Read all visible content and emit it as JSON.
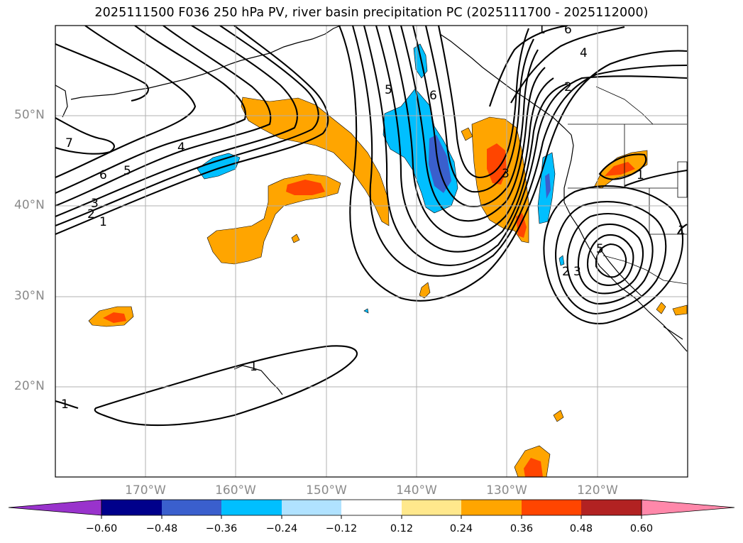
{
  "title": "2025111500 F036 250 hPa PV, river basin precipitation PC (2025111700 - 2025112000)",
  "axes": {
    "lat_labels": [
      "50°N",
      "40°N",
      "30°N",
      "20°N"
    ],
    "lon_labels": [
      "170°W",
      "160°W",
      "150°W",
      "140°W",
      "130°W",
      "120°W"
    ]
  },
  "contours": {
    "labels": [
      "7",
      "6",
      "5",
      "4",
      "3",
      "2",
      "1",
      "5",
      "6",
      "3",
      "6",
      "4",
      "2",
      "1",
      "1",
      "2",
      "3",
      "5",
      "1",
      "1",
      "1"
    ]
  },
  "colorbar": {
    "ticks": [
      "−0.60",
      "−0.48",
      "−0.36",
      "−0.24",
      "−0.12",
      "0.12",
      "0.24",
      "0.36",
      "0.48",
      "0.60"
    ],
    "colors": [
      "#9933cc",
      "#00008b",
      "#3a5fcd",
      "#00bfff",
      "#b0e2ff",
      "#ffffff",
      "#ffe88c",
      "#ffa500",
      "#ff4500",
      "#b22222",
      "#ff88aa"
    ]
  },
  "colors": {
    "pos_low": "#ffa500",
    "pos_mid": "#ff4500",
    "neg_low": "#00bfff",
    "neg_mid": "#3a5fcd",
    "grid": "#b0b0b0"
  }
}
